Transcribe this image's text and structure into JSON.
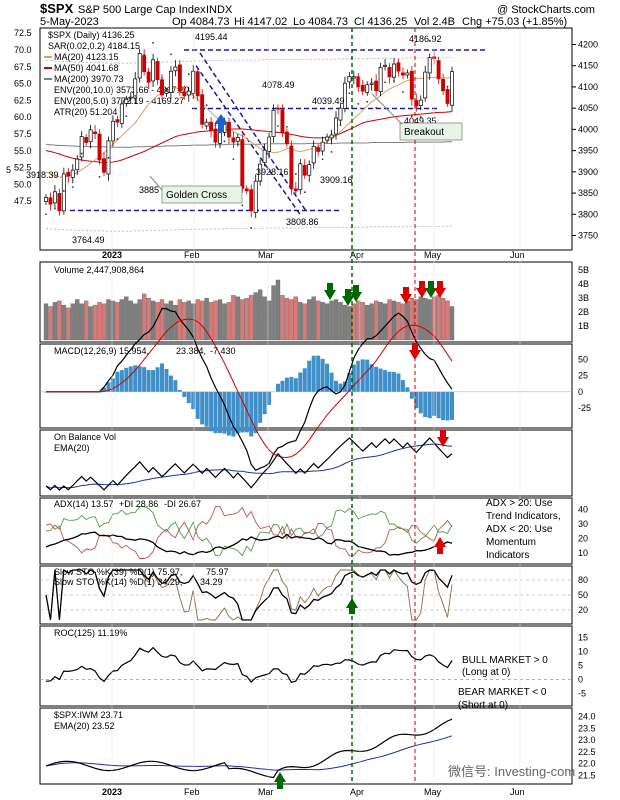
{
  "header": {
    "symbol": "$SPX",
    "name": "S&P 500 Large Cap Index",
    "exchange": "INDX",
    "site": "@ StockCharts.com",
    "date": "5-May-2023",
    "open": "Op 4084.73",
    "high": "Hi 4147.02",
    "low": "Lo 4084.73",
    "close": "Cl 4136.25",
    "vol": "Vol 2.4B",
    "chg": "Chg +75.03 (+1.85%)"
  },
  "legend": {
    "price": "$SPX (Daily) 4136.25",
    "sar": "SAR(0.02,0.2) 4184.15",
    "ma20": "MA(20) 4123.15",
    "ma50": "MA(50) 4041.68",
    "ma200": "MA(200) 3970.73",
    "env10": "ENV(200,10.0) 3573.66 - 4367.80",
    "env5": "ENV(200,5.0) 3772.19 - 4169.27",
    "atr": "ATR(20) 51.204",
    "volume": "Volume 2,447,908,864",
    "macd_a": "MACD(12,26,9) 15.954,",
    "macd_b": "23.384,",
    "macd_c": "-7.430",
    "obv": "On Balance Vol",
    "obv_ema": "EMA(20)",
    "adx_a": "ADX(14) 13.57",
    "adx_b": "+DI 28.86",
    "adx_c": "-DI 26.67",
    "sto1_a": "Slow STO %K(39) %D(1) 75.97,",
    "sto1_b": "75.97",
    "sto2_a": "Slow STO %K(14) %D(1) 34.29,",
    "sto2_b": "34.29",
    "roc": "ROC(125) 11.19%",
    "ratio": "$SPX:IWM 23.71",
    "ratio_ema": "EMA(20) 23.52"
  },
  "annotations": {
    "golden_cross": "Golden Cross",
    "breakout": "Breakout",
    "adx_note": [
      "ADX > 20: Use",
      "Trend Indicators,",
      "ADX < 20: Use",
      "Momentum",
      "Indicators"
    ],
    "bull": [
      "BULL MARKET > 0",
      "(Long at 0)"
    ],
    "bear": [
      "BEAR MARKET < 0",
      "(Short at 0)"
    ],
    "watermark": "微信号: Investing-com"
  },
  "colors": {
    "up": "#000000",
    "down": "#cc0000",
    "vol_up": "#7f7f7f",
    "vol_down": "#d87a7a",
    "ma20": "#d8a060",
    "ma50": "#cc0000",
    "ma200": "#808080",
    "macd_hist": "#3f8fc9",
    "ema_blue": "#1f2f9f",
    "green_text": "#007700",
    "red_text": "#cc0000",
    "annotation_box": "#e8f4e8"
  },
  "chart_data": {
    "type": "line",
    "x_labels": [
      "2023",
      "Feb",
      "Mar",
      "Apr",
      "May",
      "Jun"
    ],
    "price": {
      "right_ticks": [
        4200,
        4150,
        4100,
        4050,
        4000,
        3950,
        3900,
        3850,
        3800,
        3750
      ],
      "left_ticks": [
        "70.0",
        "67.5",
        "65.0",
        "62.5",
        "60.0",
        "57.5",
        "55.0",
        "52.5",
        "50.0",
        "47.5"
      ],
      "left_extra_labels": [
        "72.5",
        "5"
      ],
      "ylim": [
        3730,
        4220
      ],
      "close": [
        3840,
        3824,
        3853,
        3808,
        3895,
        3890,
        3904,
        3930,
        3983,
        3969,
        3999,
        3990,
        3928,
        3899,
        3973,
        4019,
        4017,
        4060,
        4071,
        4076,
        4119,
        4179,
        4136,
        4111,
        4164,
        4117,
        4081,
        4090,
        4137,
        4147,
        4090,
        4079,
        4090,
        4137,
        4079,
        4012,
        4017,
        3997,
        3970,
        3992,
        4012,
        3982,
        3970,
        3981,
        3861,
        3855,
        3808,
        3878,
        3918,
        3951,
        3982,
        4045,
        4048,
        3992,
        3966,
        3861,
        3855,
        3919,
        3892,
        3917,
        3960,
        3948,
        3970,
        3982,
        3987,
        4027,
        4050,
        4109,
        4125,
        4124,
        4100,
        4090,
        4105,
        4109,
        4091,
        4146,
        4151,
        4124,
        4154,
        4137,
        4128,
        4133,
        4071,
        4055,
        4069,
        4135,
        4169,
        4167,
        4119,
        4091,
        4061,
        4136
      ],
      "ma20": [
        3900,
        3895,
        3890,
        3888,
        3887,
        3890,
        3893,
        3898,
        3905,
        3912,
        3920,
        3928,
        3935,
        3945,
        3955,
        3965,
        3975,
        3985,
        3995,
        4005,
        4015,
        4030,
        4045,
        4060,
        4070,
        4080,
        4085,
        4090,
        4095,
        4098,
        4095,
        4090,
        4085,
        4080,
        4070,
        4060,
        4050,
        4040,
        4030,
        4020,
        4010,
        4000,
        3995,
        3990,
        3985,
        3978,
        3970,
        3962,
        3955,
        3950,
        3948,
        3945,
        3946,
        3950,
        3955,
        3955,
        3950,
        3948,
        3950,
        3953,
        3955,
        3960,
        3965,
        3970,
        3978,
        3985,
        3995,
        4005,
        4015,
        4025,
        4035,
        4045,
        4055,
        4065,
        4072,
        4080,
        4088,
        4095,
        4100,
        4105,
        4110,
        4115,
        4118,
        4120,
        4120,
        4121,
        4122,
        4123,
        4122,
        4121,
        4121,
        4123
      ],
      "ma50": [
        3950,
        3948,
        3945,
        3942,
        3938,
        3935,
        3932,
        3930,
        3928,
        3926,
        3925,
        3924,
        3923,
        3922,
        3922,
        3923,
        3925,
        3928,
        3932,
        3936,
        3940,
        3944,
        3948,
        3953,
        3958,
        3963,
        3968,
        3973,
        3978,
        3983,
        3986,
        3988,
        3990,
        3992,
        3994,
        3995,
        3996,
        3997,
        3998,
        3998,
        3999,
        4000,
        4001,
        4001,
        4001,
        4000,
        3999,
        3998,
        3997,
        3996,
        3995,
        3994,
        3993,
        3992,
        3990,
        3988,
        3986,
        3984,
        3982,
        3981,
        3980,
        3980,
        3980,
        3981,
        3983,
        3986,
        3990,
        3995,
        4000,
        4005,
        4010,
        4015,
        4018,
        4020,
        4022,
        4024,
        4026,
        4028,
        4030,
        4031,
        4032,
        4033,
        4034,
        4035,
        4036,
        4037,
        4038,
        4039,
        4040,
        4040,
        4041,
        4042
      ],
      "ma200": [
        3965,
        3964,
        3963,
        3962,
        3962,
        3961,
        3961,
        3960,
        3960,
        3960,
        3959,
        3959,
        3959,
        3959,
        3958,
        3958,
        3958,
        3958,
        3958,
        3958,
        3959,
        3959,
        3959,
        3960,
        3960,
        3960,
        3960,
        3961,
        3961,
        3961,
        3962,
        3962,
        3962,
        3963,
        3963,
        3963,
        3963,
        3964,
        3964,
        3964,
        3964,
        3965,
        3965,
        3965,
        3965,
        3965,
        3965,
        3965,
        3965,
        3966,
        3966,
        3966,
        3966,
        3966,
        3966,
        3966,
        3966,
        3966,
        3966,
        3967,
        3967,
        3967,
        3967,
        3967,
        3967,
        3967,
        3968,
        3968,
        3968,
        3968,
        3968,
        3968,
        3968,
        3969,
        3969,
        3969,
        3969,
        3969,
        3969,
        3969,
        3969,
        3970,
        3970,
        3970,
        3970,
        3970,
        3970,
        3970,
        3970,
        3970,
        3971,
        3971
      ],
      "levels": [
        {
          "value": 4186.92,
          "label": "4186.92",
          "style": "dashed"
        },
        {
          "value": 4049.35,
          "label": "4049.35",
          "style": "dashed"
        },
        {
          "value": 3808.86,
          "label": "3808.86",
          "style": "dashed"
        }
      ],
      "price_labels": [
        "4195.44",
        "4078.49",
        "4039.49",
        "3928.16",
        "3909.16",
        "3885",
        "3918.39",
        "3764.49"
      ]
    },
    "volume": {
      "right_ticks": [
        "5B",
        "4B",
        "3B",
        "2B",
        "1B"
      ],
      "values": [
        2.6,
        2.4,
        2.7,
        2.8,
        2.5,
        2.3,
        2.6,
        2.9,
        2.6,
        2.8,
        2.4,
        2.5,
        2.7,
        2.6,
        2.9,
        2.8,
        2.7,
        2.9,
        3.1,
        2.8,
        2.6,
        2.9,
        3.3,
        3.0,
        2.8,
        2.7,
        2.9,
        2.6,
        2.8,
        2.5,
        2.9,
        2.7,
        2.8,
        2.6,
        2.9,
        2.8,
        3.0,
        2.7,
        2.8,
        2.9,
        2.6,
        2.7,
        3.2,
        3.1,
        2.9,
        3.0,
        3.2,
        3.4,
        3.6,
        3.1,
        2.8,
        3.9,
        4.3,
        3.2,
        3.0,
        2.9,
        3.1,
        2.7,
        2.6,
        2.9,
        3.1,
        2.8,
        2.7,
        2.6,
        2.8,
        2.9,
        2.7,
        2.5,
        2.4,
        2.6,
        2.8,
        2.7,
        2.5,
        2.6,
        2.8,
        2.7,
        2.6,
        2.9,
        2.8,
        2.7,
        2.6,
        2.8,
        3.0,
        2.9,
        3.1,
        3.0,
        2.9,
        3.1,
        3.2,
        3.0,
        2.8,
        2.4
      ]
    },
    "macd": {
      "right_ticks": [
        "50",
        "25",
        "0",
        "-25"
      ],
      "ylim": [
        -50,
        65
      ]
    },
    "adx": {
      "right_ticks": [
        "40",
        "30",
        "20",
        "10"
      ],
      "ylim": [
        5,
        45
      ]
    },
    "sto": {
      "right_ticks": [
        "80",
        "50",
        "20"
      ],
      "ylim": [
        0,
        100
      ]
    },
    "roc": {
      "right_ticks": [
        "15",
        "10",
        "5",
        "0",
        "-5"
      ],
      "ylim": [
        -8,
        17
      ]
    },
    "ratio": {
      "right_ticks": [
        "24.0",
        "23.5",
        "23.0",
        "22.5",
        "22.0",
        "21.5"
      ],
      "ylim": [
        21.3,
        24.2
      ]
    }
  }
}
